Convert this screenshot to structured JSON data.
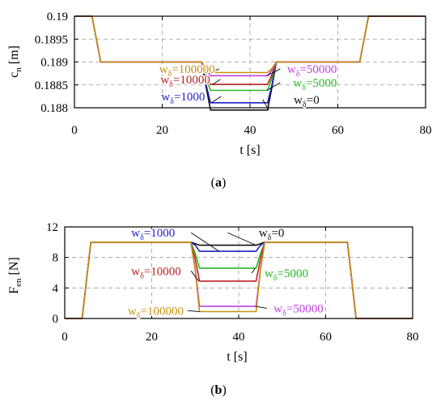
{
  "chart_data": [
    {
      "type": "line",
      "panel_label": "(a)",
      "xlabel": "t [s]",
      "ylabel_main": "c",
      "ylabel_sub": "n",
      "ylabel_unit": " [m]",
      "xlim": [
        0,
        80
      ],
      "ylim": [
        0.188,
        0.19
      ],
      "xticks": [
        0,
        20,
        40,
        60,
        80
      ],
      "yticks": [
        0.188,
        0.1885,
        0.189,
        0.1895,
        0.19
      ],
      "ytick_labels": [
        "0.188",
        "0.1885",
        "0.189",
        "0.1895",
        "0.19"
      ],
      "grid": true,
      "series": [
        {
          "name": "0",
          "color": "#111111",
          "x": [
            0,
            4,
            5,
            6,
            29,
            30,
            31,
            44,
            45,
            46,
            65,
            66,
            67,
            80
          ],
          "y": [
            0.19,
            0.19,
            0.1895,
            0.189,
            0.189,
            0.18845,
            0.18795,
            0.18795,
            0.18845,
            0.189,
            0.189,
            0.1895,
            0.19,
            0.19
          ]
        },
        {
          "name": "1000",
          "color": "#1f1fc4",
          "x": [
            0,
            4,
            5,
            6,
            29,
            30,
            31,
            44,
            45,
            46,
            65,
            66,
            67,
            80
          ],
          "y": [
            0.19,
            0.19,
            0.1895,
            0.189,
            0.189,
            0.1885,
            0.18811,
            0.18811,
            0.1885,
            0.189,
            0.189,
            0.1895,
            0.19,
            0.19
          ]
        },
        {
          "name": "5000",
          "color": "#22bb22",
          "x": [
            0,
            4,
            5,
            6,
            29,
            30,
            31,
            44,
            45,
            46,
            65,
            66,
            67,
            80
          ],
          "y": [
            0.19,
            0.19,
            0.1895,
            0.189,
            0.189,
            0.18865,
            0.18838,
            0.18838,
            0.18865,
            0.189,
            0.189,
            0.1895,
            0.19,
            0.19
          ]
        },
        {
          "name": "10000",
          "color": "#bb2020",
          "x": [
            0,
            4,
            5,
            6,
            29,
            30,
            31,
            44,
            45,
            46,
            65,
            66,
            67,
            80
          ],
          "y": [
            0.19,
            0.19,
            0.1895,
            0.189,
            0.189,
            0.18872,
            0.18851,
            0.18851,
            0.18872,
            0.189,
            0.189,
            0.1895,
            0.19,
            0.19
          ]
        },
        {
          "name": "50000",
          "color": "#c040e0",
          "x": [
            0,
            4,
            5,
            6,
            29,
            30,
            31,
            44,
            45,
            46,
            65,
            66,
            67,
            80
          ],
          "y": [
            0.19,
            0.19,
            0.1895,
            0.189,
            0.189,
            0.18882,
            0.1887,
            0.1887,
            0.18882,
            0.189,
            0.189,
            0.1895,
            0.19,
            0.19
          ]
        },
        {
          "name": "100000",
          "color": "#c89010",
          "x": [
            0,
            4,
            5,
            6,
            29,
            30,
            31,
            44,
            45,
            46,
            65,
            66,
            67,
            80
          ],
          "y": [
            0.19,
            0.19,
            0.1895,
            0.189,
            0.189,
            0.18886,
            0.18877,
            0.18877,
            0.18886,
            0.189,
            0.189,
            0.1895,
            0.19,
            0.19
          ]
        }
      ],
      "annotations": [
        {
          "prefix": "w",
          "sub": "δ",
          "value": "=100000",
          "color": "#c89010",
          "label_x": 19.3,
          "label_y": 0.18876,
          "anchor": "start",
          "point_x": 31.2,
          "point_y": 0.18877
        },
        {
          "prefix": "w",
          "sub": "δ",
          "value": "=10000",
          "color": "#bb2020",
          "label_x": 19.6,
          "label_y": 0.18853,
          "anchor": "start",
          "point_x": 31.5,
          "point_y": 0.18851
        },
        {
          "prefix": "w",
          "sub": "δ",
          "value": "=1000",
          "color": "#1f1fc4",
          "label_x": 19.8,
          "label_y": 0.18816,
          "anchor": "start",
          "point_x": 31.2,
          "point_y": 0.18811
        },
        {
          "prefix": "w",
          "sub": "δ",
          "value": "=50000",
          "color": "#c040e0",
          "label_x": 59.8,
          "label_y": 0.18876,
          "anchor": "end",
          "point_x": 43.8,
          "point_y": 0.1887
        },
        {
          "prefix": "w",
          "sub": "δ",
          "value": "=5000",
          "color": "#22bb22",
          "label_x": 59.8,
          "label_y": 0.18846,
          "anchor": "end",
          "point_x": 43.8,
          "point_y": 0.18838
        },
        {
          "prefix": "w",
          "sub": "δ",
          "value": "=0",
          "color": "#111111",
          "label_x": 55.8,
          "label_y": 0.18809,
          "anchor": "end",
          "point_x": 44.3,
          "point_y": 0.18795
        }
      ]
    },
    {
      "type": "line",
      "panel_label": "(b)",
      "xlabel": "t [s]",
      "ylabel_main": "F",
      "ylabel_sub": "en",
      "ylabel_unit": " [N]",
      "xlim": [
        0,
        80
      ],
      "ylim": [
        0,
        12
      ],
      "xticks": [
        0,
        20,
        40,
        60,
        80
      ],
      "yticks": [
        0,
        4,
        8,
        12
      ],
      "ytick_labels": [
        "0",
        "4",
        "8",
        "12"
      ],
      "grid": true,
      "series": [
        {
          "name": "0",
          "color": "#111111",
          "x": [
            0,
            4,
            5,
            6,
            29,
            30,
            31,
            44,
            45,
            46,
            65,
            66,
            67,
            80
          ],
          "y": [
            0,
            0,
            5,
            10,
            10,
            9.8,
            9.6,
            9.6,
            9.8,
            10,
            10,
            5,
            0,
            0
          ]
        },
        {
          "name": "1000",
          "color": "#1f1fc4",
          "x": [
            0,
            4,
            5,
            6,
            29,
            30,
            31,
            44,
            45,
            46,
            65,
            66,
            67,
            80
          ],
          "y": [
            0,
            0,
            5,
            10,
            10,
            9.6,
            8.8,
            8.8,
            9.6,
            10,
            10,
            5,
            0,
            0
          ]
        },
        {
          "name": "5000",
          "color": "#22bb22",
          "x": [
            0,
            4,
            5,
            6,
            29,
            30,
            31,
            44,
            45,
            46,
            65,
            66,
            67,
            80
          ],
          "y": [
            0,
            0,
            5,
            10,
            10,
            8.5,
            6.6,
            6.6,
            8.5,
            10,
            10,
            5,
            0,
            0
          ]
        },
        {
          "name": "10000",
          "color": "#bb2020",
          "x": [
            0,
            4,
            5,
            6,
            29,
            30,
            31,
            44,
            45,
            46,
            65,
            66,
            67,
            80
          ],
          "y": [
            0,
            0,
            5,
            10,
            10,
            7.8,
            4.9,
            4.9,
            7.8,
            10,
            10,
            5,
            0,
            0
          ]
        },
        {
          "name": "50000",
          "color": "#c040e0",
          "x": [
            0,
            4,
            5,
            6,
            29,
            30,
            31,
            44,
            45,
            46,
            65,
            66,
            67,
            80
          ],
          "y": [
            0,
            0,
            5,
            10,
            10,
            6.5,
            1.6,
            1.6,
            6.5,
            10,
            10,
            5,
            0,
            0
          ]
        },
        {
          "name": "100000",
          "color": "#c89010",
          "x": [
            0,
            4,
            5,
            6,
            29,
            30,
            31,
            44,
            45,
            46,
            65,
            66,
            67,
            80
          ],
          "y": [
            0,
            0,
            5,
            10,
            10,
            6.3,
            0.9,
            0.9,
            6.3,
            10,
            10,
            5,
            0,
            0
          ]
        }
      ],
      "annotations": [
        {
          "prefix": "w",
          "sub": "δ",
          "value": "=1000",
          "color": "#1f1fc4",
          "label_x": 15.3,
          "label_y": 10.7,
          "anchor": "start",
          "point_x": 35.5,
          "point_y": 8.8
        },
        {
          "prefix": "w",
          "sub": "δ",
          "value": "=0",
          "color": "#111111",
          "label_x": 50.5,
          "label_y": 10.7,
          "anchor": "end",
          "point_x": 44.0,
          "point_y": 9.6
        },
        {
          "prefix": "w",
          "sub": "δ",
          "value": "=10000",
          "color": "#bb2020",
          "label_x": 15.3,
          "label_y": 5.7,
          "anchor": "start",
          "point_x": 30.8,
          "point_y": 4.9
        },
        {
          "prefix": "w",
          "sub": "δ",
          "value": "=5000",
          "color": "#22bb22",
          "label_x": 56.0,
          "label_y": 5.4,
          "anchor": "end",
          "point_x": 43.8,
          "point_y": 6.6
        },
        {
          "prefix": "w",
          "sub": "δ",
          "value": "=100000",
          "color": "#c89010",
          "label_x": 14.5,
          "label_y": 0.5,
          "anchor": "start",
          "point_x": 31.0,
          "point_y": 0.9
        },
        {
          "prefix": "w",
          "sub": "δ",
          "value": "=50000",
          "color": "#c040e0",
          "label_x": 59.5,
          "label_y": 0.8,
          "anchor": "end",
          "point_x": 43.8,
          "point_y": 1.6
        }
      ]
    }
  ]
}
